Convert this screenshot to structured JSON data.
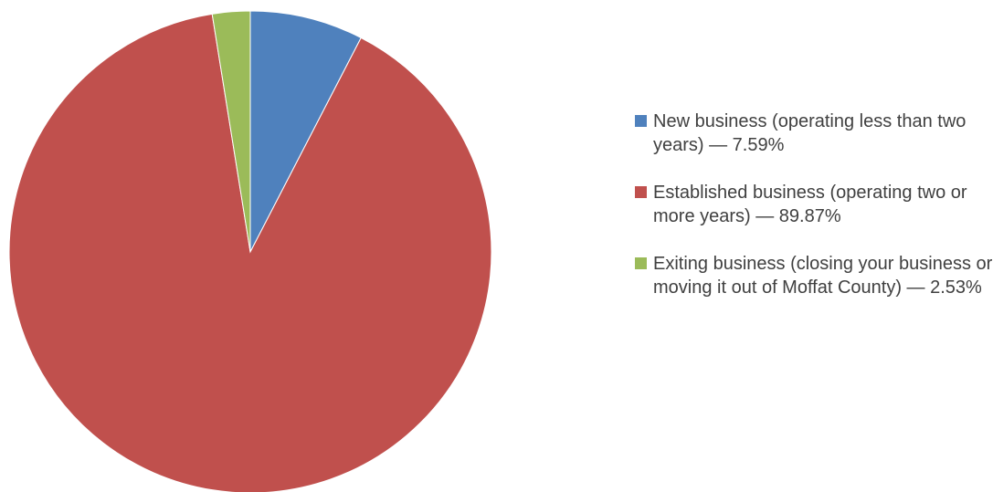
{
  "chart_data": {
    "type": "pie",
    "title": "",
    "slices": [
      {
        "label": "New business (operating less than two years) — 7.59%",
        "value": 7.59,
        "color": "#4F81BD"
      },
      {
        "label": "Established business (operating two or more years) — 89.87%",
        "value": 89.87,
        "color": "#C0504D"
      },
      {
        "label": "Exiting business (closing your business or moving it out of Moffat County) — 2.53%",
        "value": 2.53,
        "color": "#9BBB59"
      }
    ],
    "start_angle": "12 o'clock",
    "direction": "clockwise",
    "legend_position": "right"
  }
}
